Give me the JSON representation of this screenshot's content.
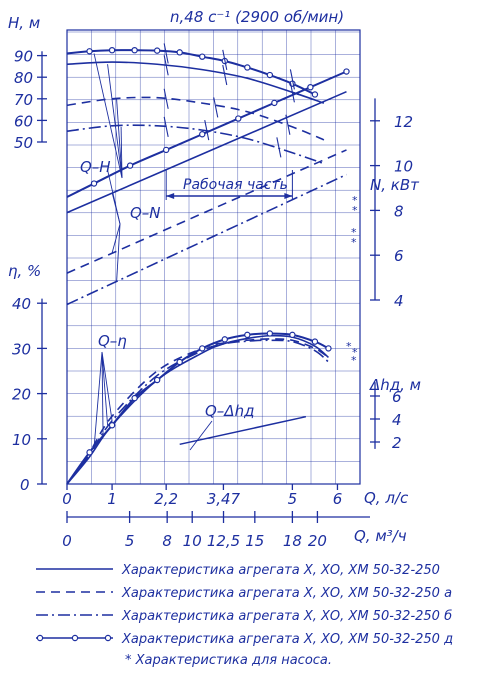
{
  "chart_data": {
    "type": "line",
    "title": "n,48 с⁻¹ (2900 об/мин)",
    "axes": {
      "H": {
        "label": "H, м",
        "ticks": [
          50,
          60,
          70,
          80,
          90
        ]
      },
      "N": {
        "label": "N, кВт",
        "ticks": [
          4,
          6,
          8,
          10,
          12
        ]
      },
      "eta": {
        "label": "η, %",
        "ticks": [
          0,
          10,
          20,
          30,
          40
        ]
      },
      "dh": {
        "label": "Δhд, м",
        "ticks": [
          2,
          4,
          6
        ]
      },
      "Q_ls": {
        "label": "Q, л/с",
        "ticks": [
          "0",
          "1",
          "2,2",
          "3,47",
          "5",
          "6"
        ]
      },
      "Q_m3h": {
        "label": "Q, м³/ч",
        "ticks": [
          "0",
          "5",
          "8",
          "10",
          "12,5",
          "15",
          "18",
          "20"
        ]
      }
    },
    "curve_labels": {
      "qh": "Q–H",
      "qn": "Q–N",
      "qeta": "Q–η",
      "qdh": "Q–Δhд"
    },
    "working_zone": {
      "label": "Рабочая часть",
      "q_from": 2.2,
      "q_to": 5
    },
    "asterisk": "*",
    "legend": [
      "Характеристика агрегата Х, ХО, ХМ 50-32-250",
      "Характеристика агрегата Х, ХО, ХМ 50-32-250 а",
      "Характеристика агрегата Х, ХО, ХМ 50-32-250 б",
      "Характеристика агрегата Х, ХО, ХМ 50-32-250 д"
    ],
    "footnote": "* Характеристика для насоса.",
    "series": [
      {
        "style": "solid",
        "H": {
          "q": [
            0,
            1,
            2,
            3,
            4,
            5,
            5.7
          ],
          "v": [
            86,
            87,
            86,
            83.5,
            79.5,
            73,
            68
          ]
        },
        "N": {
          "q": [
            0,
            6.2
          ],
          "v": [
            7.9,
            13.3
          ]
        },
        "eta": {
          "q": [
            0,
            0.5,
            1,
            2,
            3,
            3.47,
            4,
            4.5,
            5,
            5.5,
            5.8
          ],
          "v": [
            0,
            6,
            13,
            23,
            29,
            31,
            32.2,
            32.8,
            32.5,
            30.5,
            28
          ]
        }
      },
      {
        "style": "dashed",
        "H": {
          "q": [
            0,
            1,
            2,
            3,
            4,
            5,
            5.7
          ],
          "v": [
            67,
            70,
            70.5,
            68,
            64,
            57,
            51
          ]
        },
        "N": {
          "q": [
            0,
            6.2
          ],
          "v": [
            5.2,
            10.7
          ]
        },
        "eta": {
          "q": [
            0,
            0.5,
            1,
            2,
            3,
            3.47,
            4,
            4.5,
            5,
            5.5,
            5.8
          ],
          "v": [
            0,
            7,
            15,
            25,
            30,
            31.2,
            31.8,
            32.1,
            31.8,
            30,
            28
          ]
        }
      },
      {
        "style": "dashdot",
        "H": {
          "q": [
            0,
            1,
            2,
            3,
            4,
            5,
            5.7
          ],
          "v": [
            55,
            57.5,
            57.5,
            55.5,
            51.5,
            45,
            40
          ]
        },
        "N": {
          "q": [
            0,
            6.2
          ],
          "v": [
            3.8,
            9.6
          ]
        },
        "eta": {
          "q": [
            0,
            0.5,
            1,
            2,
            3,
            3.47,
            4,
            4.5,
            5,
            5.5,
            5.8
          ],
          "v": [
            0,
            6.5,
            14,
            24,
            29.5,
            31,
            31.6,
            31.8,
            31.5,
            29.5,
            27
          ]
        }
      },
      {
        "style": "solid-circles",
        "H": {
          "q": [
            0,
            0.5,
            1,
            1.5,
            2,
            2.5,
            3,
            3.5,
            4,
            4.5,
            5,
            5.5
          ],
          "v": [
            91,
            92,
            92.5,
            92.5,
            92.3,
            91.5,
            89.5,
            87.5,
            84.5,
            81,
            77,
            72
          ]
        },
        "N": {
          "q": [
            0,
            0.6,
            1.4,
            2.2,
            3,
            3.8,
            4.6,
            5.4,
            6.2
          ],
          "v": [
            8.6,
            9.2,
            10,
            10.7,
            11.4,
            12.1,
            12.8,
            13.5,
            14.2
          ]
        },
        "eta": {
          "q": [
            0,
            0.5,
            1,
            1.5,
            2,
            2.5,
            3,
            3.5,
            4,
            4.5,
            5,
            5.5,
            5.8
          ],
          "v": [
            0,
            7,
            13,
            19,
            23,
            27,
            30,
            32,
            33,
            33.3,
            33,
            31.5,
            30
          ]
        }
      }
    ],
    "dh_curve": {
      "q": [
        2.5,
        5.3
      ],
      "v": [
        1.8,
        4.2
      ]
    },
    "ylim_H": [
      50,
      95
    ],
    "ylim_N": [
      4,
      13
    ],
    "ylim_eta": [
      0,
      40
    ],
    "ylim_dh": [
      0,
      8
    ],
    "xlim_Q": [
      0,
      6.5
    ],
    "grid": true,
    "colors": {
      "ink": "#1d2fa0",
      "background": "#ffffff"
    }
  }
}
